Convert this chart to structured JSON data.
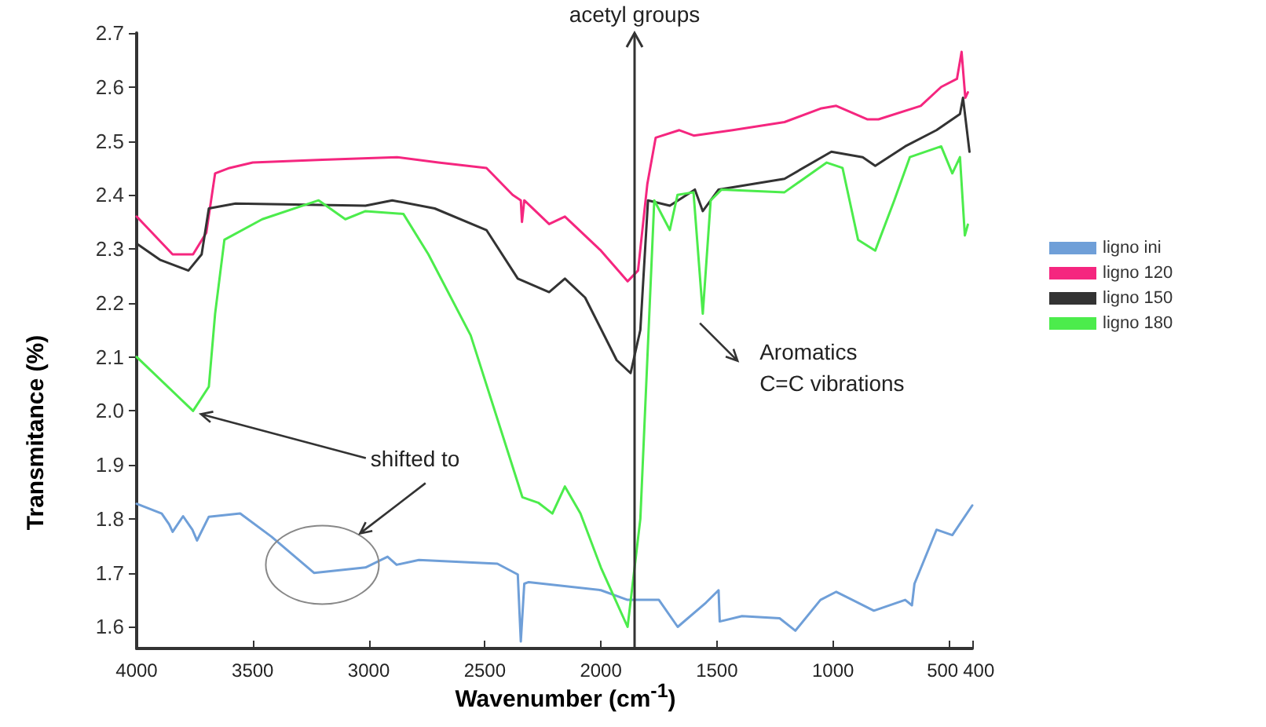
{
  "chart_data": {
    "type": "line",
    "xlabel": "Wavenumber (cm$^{-1}$)",
    "ylabel": "Transmitance (%)",
    "xlim": [
      4000,
      400
    ],
    "xticks": [
      4000,
      3500,
      3000,
      2500,
      2000,
      1500,
      1000,
      500,
      400
    ],
    "ylim": [
      1.56,
      2.7
    ],
    "yticks": [
      1.6,
      1.7,
      1.8,
      1.9,
      {
        "value": 2,
        "label": "2.0"
      },
      2.1,
      2.2,
      2.3,
      2.4,
      2.5,
      2.6,
      2.7
    ],
    "ref_lines": [
      {
        "axis": "x",
        "value": 1855,
        "label": "acetyl groups",
        "color": "#333333"
      }
    ],
    "grid": false,
    "legend": "right",
    "marker": "none",
    "line_style": "solid",
    "annotations": [
      {
        "text": "Aromatics\nC=C vibrations",
        "x": 1560,
        "y": 2.18
      },
      {
        "text": "shifted to",
        "x": 3757,
        "y": 2.0
      }
    ],
    "series": [
      {
        "name": "ligno ini",
        "color": "#6f9fd8",
        "x": [
          4000,
          3892,
          3860,
          3845,
          3800,
          3760,
          3740,
          3689,
          3554,
          3419,
          3236,
          3014,
          2919,
          2880,
          2784,
          2446,
          2358,
          2345,
          2330,
          2311,
          2000,
          1885,
          1750,
          1669,
          1547,
          1493,
          1488,
          1392,
          1230,
          1162,
          1054,
          986,
          824,
          689,
          660,
          649,
          554,
          486,
          400
        ],
        "values": [
          1.828,
          1.81,
          1.79,
          1.776,
          1.805,
          1.78,
          1.76,
          1.804,
          1.81,
          1.767,
          1.7,
          1.71,
          1.73,
          1.715,
          1.724,
          1.717,
          1.697,
          1.573,
          1.68,
          1.683,
          1.668,
          1.65,
          1.65,
          1.6,
          1.645,
          1.668,
          1.61,
          1.62,
          1.616,
          1.593,
          1.65,
          1.665,
          1.63,
          1.65,
          1.64,
          1.68,
          1.78,
          1.77,
          1.825
        ]
      },
      {
        "name": "ligno 120",
        "color": "#f5267f",
        "x": [
          4000,
          3845,
          3800,
          3757,
          3700,
          3662,
          3600,
          3500,
          3200,
          2878,
          2700,
          2493,
          2380,
          2345,
          2340,
          2330,
          2223,
          2155,
          2000,
          1885,
          1840,
          1800,
          1764,
          1662,
          1600,
          1432,
          1209,
          1054,
          986,
          851,
          804,
          622,
          534,
          466,
          446,
          430,
          419
        ],
        "values": [
          2.36,
          2.29,
          2.29,
          2.29,
          2.33,
          2.44,
          2.45,
          2.46,
          2.465,
          2.47,
          2.46,
          2.45,
          2.4,
          2.39,
          2.35,
          2.39,
          2.346,
          2.36,
          2.297,
          2.24,
          2.26,
          2.42,
          2.506,
          2.52,
          2.51,
          2.52,
          2.535,
          2.56,
          2.565,
          2.54,
          2.54,
          2.565,
          2.6,
          2.615,
          2.665,
          2.58,
          2.59
        ]
      },
      {
        "name": "ligno 150",
        "color": "#333333",
        "x": [
          4000,
          3900,
          3777,
          3720,
          3689,
          3574,
          3014,
          2899,
          2716,
          2493,
          2358,
          2223,
          2155,
          2068,
          1932,
          1872,
          1830,
          1797,
          1703,
          1595,
          1561,
          1493,
          1209,
          1007,
          872,
          818,
          689,
          554,
          453,
          440,
          412
        ],
        "values": [
          2.31,
          2.28,
          2.26,
          2.29,
          2.375,
          2.384,
          2.38,
          2.39,
          2.375,
          2.335,
          2.245,
          2.22,
          2.245,
          2.21,
          2.094,
          2.07,
          2.15,
          2.39,
          2.38,
          2.41,
          2.37,
          2.41,
          2.43,
          2.48,
          2.47,
          2.454,
          2.49,
          2.52,
          2.55,
          2.58,
          2.48
        ]
      },
      {
        "name": "ligno 180",
        "color": "#4cec4c",
        "x": [
          4000,
          3757,
          3689,
          3662,
          3622,
          3459,
          3216,
          3101,
          3014,
          2851,
          2743,
          2561,
          2338,
          2270,
          2209,
          2155,
          2088,
          2000,
          1885,
          1830,
          1770,
          1703,
          1670,
          1601,
          1561,
          1527,
          1480,
          1209,
          1027,
          959,
          892,
          818,
          736,
          669,
          534,
          486,
          453,
          432,
          419
        ],
        "values": [
          2.1,
          2.0,
          2.045,
          2.18,
          2.317,
          2.355,
          2.39,
          2.355,
          2.37,
          2.365,
          2.29,
          2.14,
          1.84,
          1.83,
          1.81,
          1.86,
          1.81,
          1.71,
          1.6,
          1.8,
          2.39,
          2.335,
          2.4,
          2.405,
          2.18,
          2.39,
          2.41,
          2.405,
          2.46,
          2.45,
          2.317,
          2.297,
          2.39,
          2.47,
          2.49,
          2.44,
          2.47,
          2.325,
          2.345
        ]
      }
    ]
  }
}
